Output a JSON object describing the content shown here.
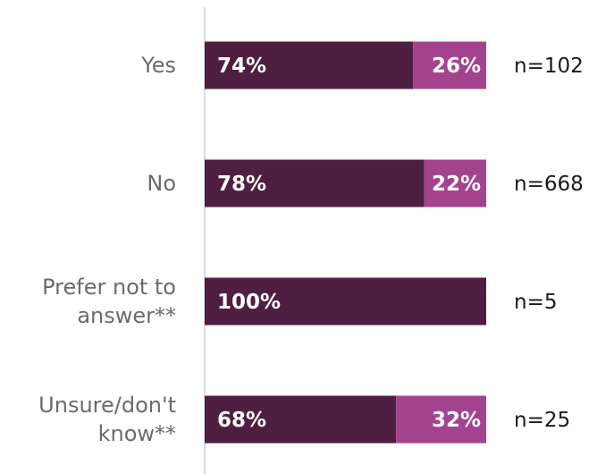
{
  "chart_data": {
    "type": "bar",
    "orientation": "horizontal",
    "stacked": true,
    "percent_scale": [
      0,
      100
    ],
    "colors": [
      "#4f1f42",
      "#a3438e"
    ],
    "categories": [
      [
        "Yes"
      ],
      [
        "No"
      ],
      [
        "Prefer not to",
        "answer**"
      ],
      [
        "Unsure/don't",
        "know**"
      ]
    ],
    "series": [
      {
        "values": [
          74,
          78,
          100,
          68
        ],
        "labels": [
          "74%",
          "78%",
          "100%",
          "68%"
        ]
      },
      {
        "values": [
          26,
          22,
          0,
          32
        ],
        "labels": [
          "26%",
          "22%",
          "",
          "32%"
        ]
      }
    ],
    "n_labels": [
      "n=102",
      "n=668",
      "n=5",
      "n=25"
    ],
    "legend": "none",
    "grid": false
  }
}
